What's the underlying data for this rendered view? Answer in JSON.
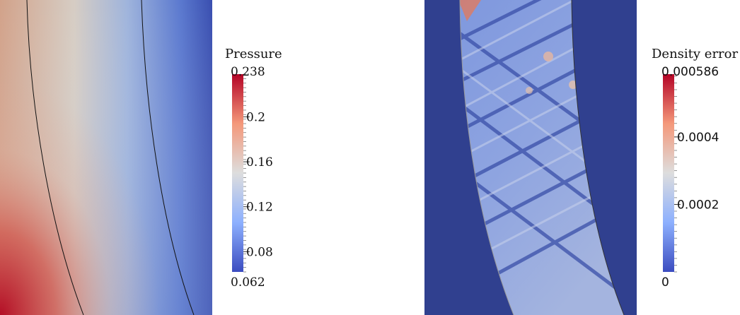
{
  "chart_data": [
    {
      "type": "heatmap",
      "title": "Pressure",
      "colormap": "cool-to-warm",
      "range": [
        0.062,
        0.238
      ],
      "min_label": "0.062",
      "max_label": "0.238",
      "ticks": [
        {
          "value": 0.2,
          "label": "0.2"
        },
        {
          "value": 0.16,
          "label": "0.16"
        },
        {
          "value": 0.12,
          "label": "0.12"
        },
        {
          "value": 0.08,
          "label": "0.08"
        }
      ],
      "minor_tick_step": 0.004,
      "contours": 2
    },
    {
      "type": "heatmap",
      "title": "Density error",
      "colormap": "cool-to-warm",
      "range": [
        0,
        0.000586
      ],
      "min_label": "0",
      "max_label": "0.000586",
      "ticks": [
        {
          "value": 0.0004,
          "label": "0.0004"
        },
        {
          "value": 0.0002,
          "label": "0.0002"
        }
      ],
      "minor_tick_step": 2e-05
    }
  ]
}
